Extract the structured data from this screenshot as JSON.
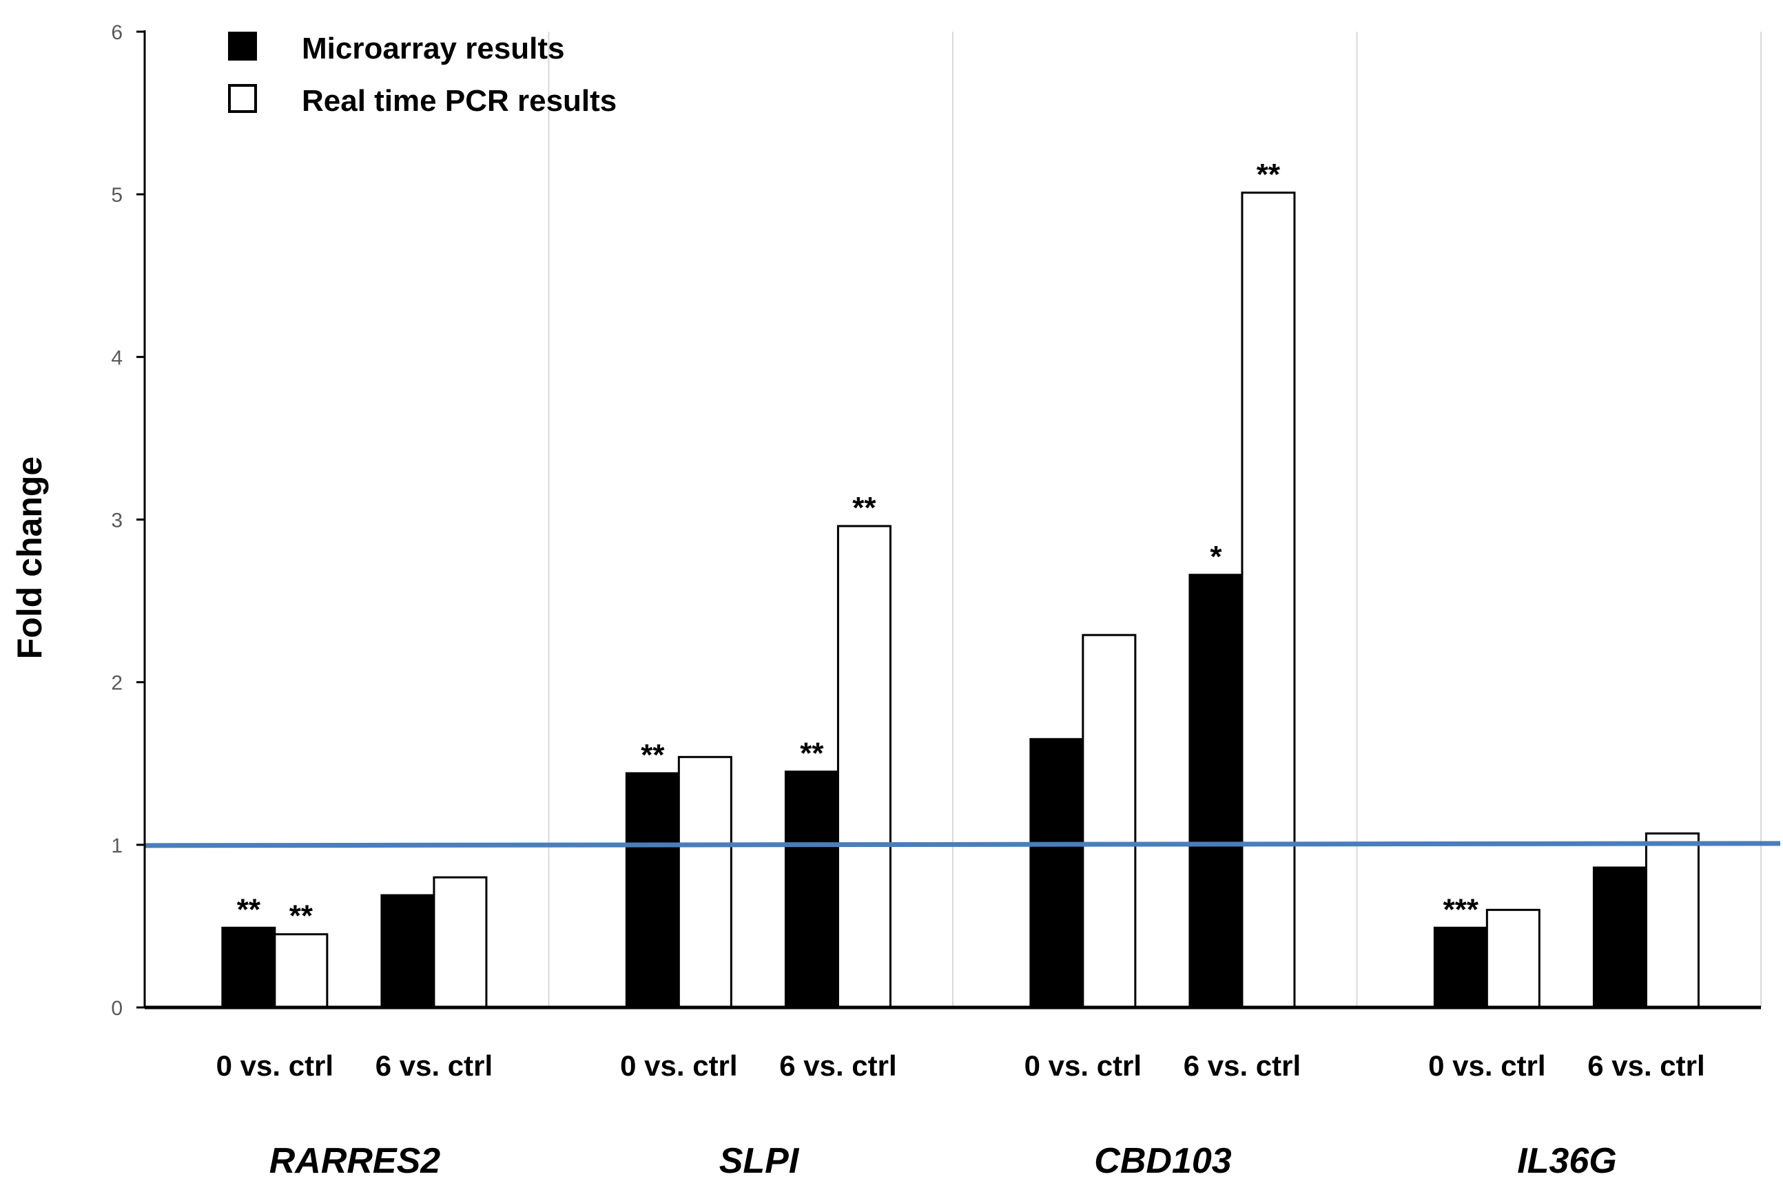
{
  "chart_data": {
    "type": "bar",
    "title": "",
    "xlabel": "",
    "ylabel": "Fold change",
    "ylim": [
      0,
      6
    ],
    "yticks": [
      0,
      1,
      2,
      3,
      4,
      5,
      6
    ],
    "grid": false,
    "legend_position": "top-left",
    "reference_line": {
      "value": 1,
      "color": "#4a7ebb"
    },
    "groups": [
      {
        "label": "RARRES2",
        "categories": [
          {
            "label": "0 vs. ctrl",
            "values": [
              0.49,
              0.45
            ],
            "annotations": [
              "**",
              "**"
            ]
          },
          {
            "label": "6 vs. ctrl",
            "values": [
              0.69,
              0.8
            ],
            "annotations": [
              "",
              ""
            ]
          }
        ]
      },
      {
        "label": "SLPI",
        "categories": [
          {
            "label": "0 vs. ctrl",
            "values": [
              1.44,
              1.54
            ],
            "annotations": [
              "**",
              ""
            ]
          },
          {
            "label": "6 vs. ctrl",
            "values": [
              1.45,
              2.96
            ],
            "annotations": [
              "**",
              "**"
            ]
          }
        ]
      },
      {
        "label": "CBD103",
        "categories": [
          {
            "label": "0 vs. ctrl",
            "values": [
              1.65,
              2.29
            ],
            "annotations": [
              "",
              ""
            ]
          },
          {
            "label": "6 vs. ctrl",
            "values": [
              2.66,
              5.01
            ],
            "annotations": [
              "*",
              "**"
            ]
          }
        ]
      },
      {
        "label": "IL36G",
        "categories": [
          {
            "label": "0 vs. ctrl",
            "values": [
              0.49,
              0.6
            ],
            "annotations": [
              "***",
              ""
            ]
          },
          {
            "label": "6 vs. ctrl",
            "values": [
              0.86,
              1.07
            ],
            "annotations": [
              "",
              ""
            ]
          }
        ]
      }
    ],
    "series": [
      {
        "name": "Microarray results",
        "fill": "#000000"
      },
      {
        "name": "Real time PCR results",
        "fill": "#ffffff"
      }
    ]
  }
}
